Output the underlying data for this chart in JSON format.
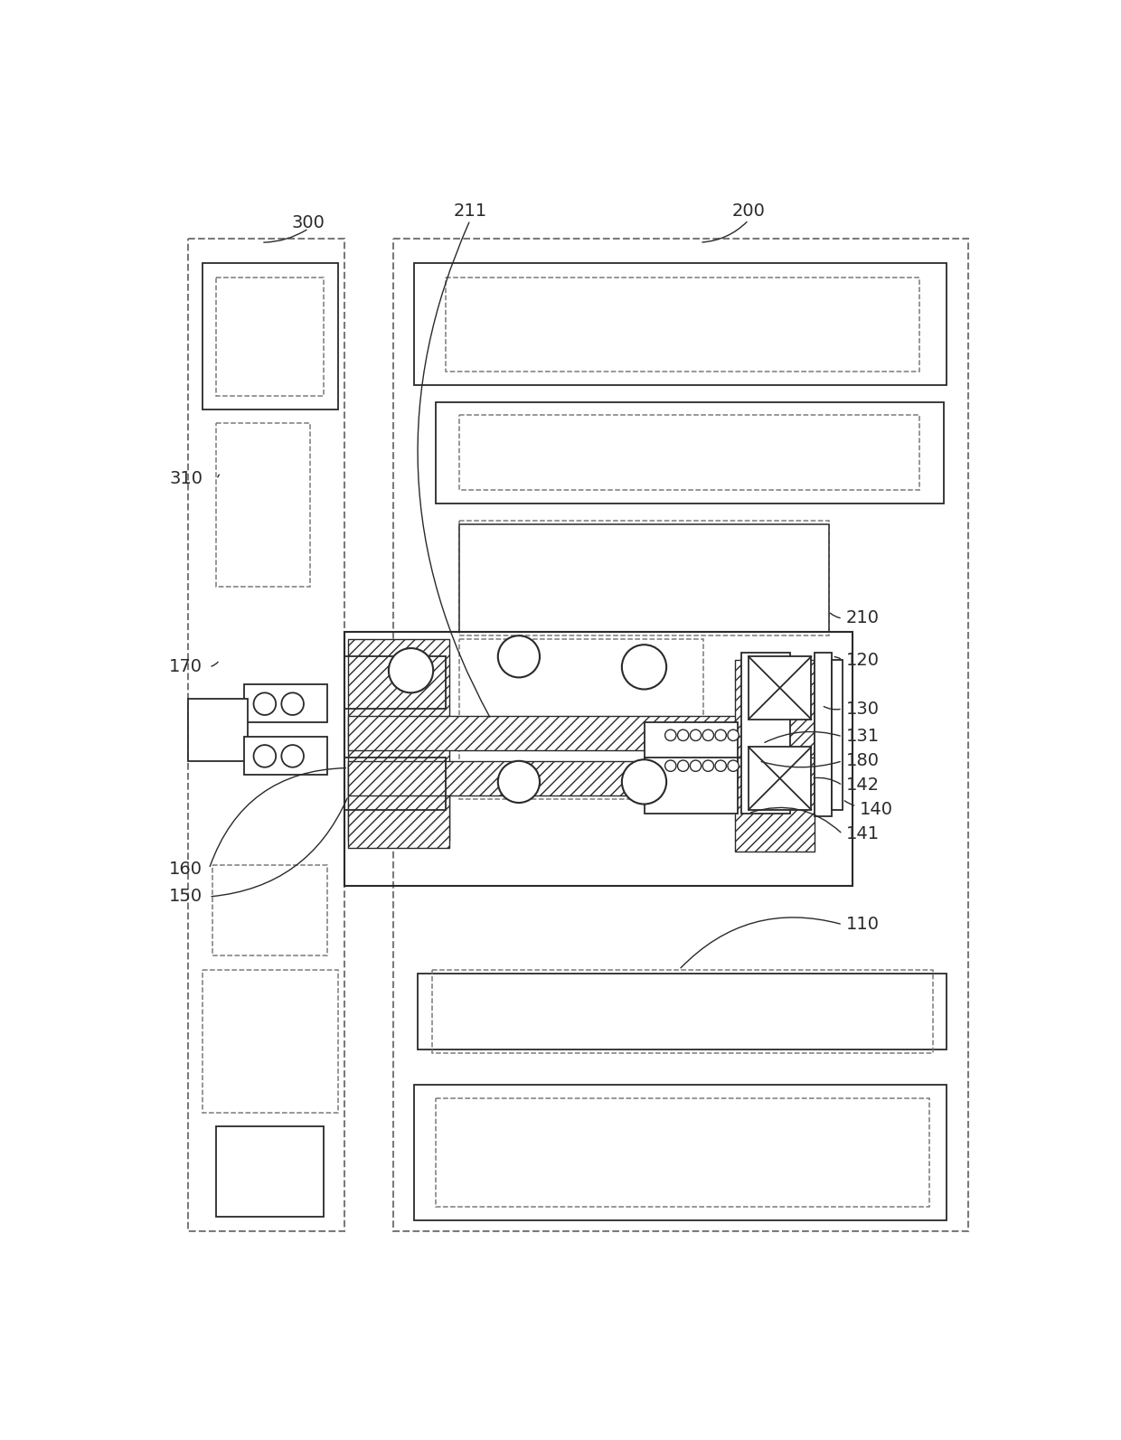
{
  "fig_width": 12.4,
  "fig_height": 15.93,
  "dpi": 100,
  "bg_color": "#ffffff",
  "lc": "#2a2a2a",
  "dc": "#7a7a7a",
  "label_fs": 14,
  "label_color": "#2a2a2a"
}
